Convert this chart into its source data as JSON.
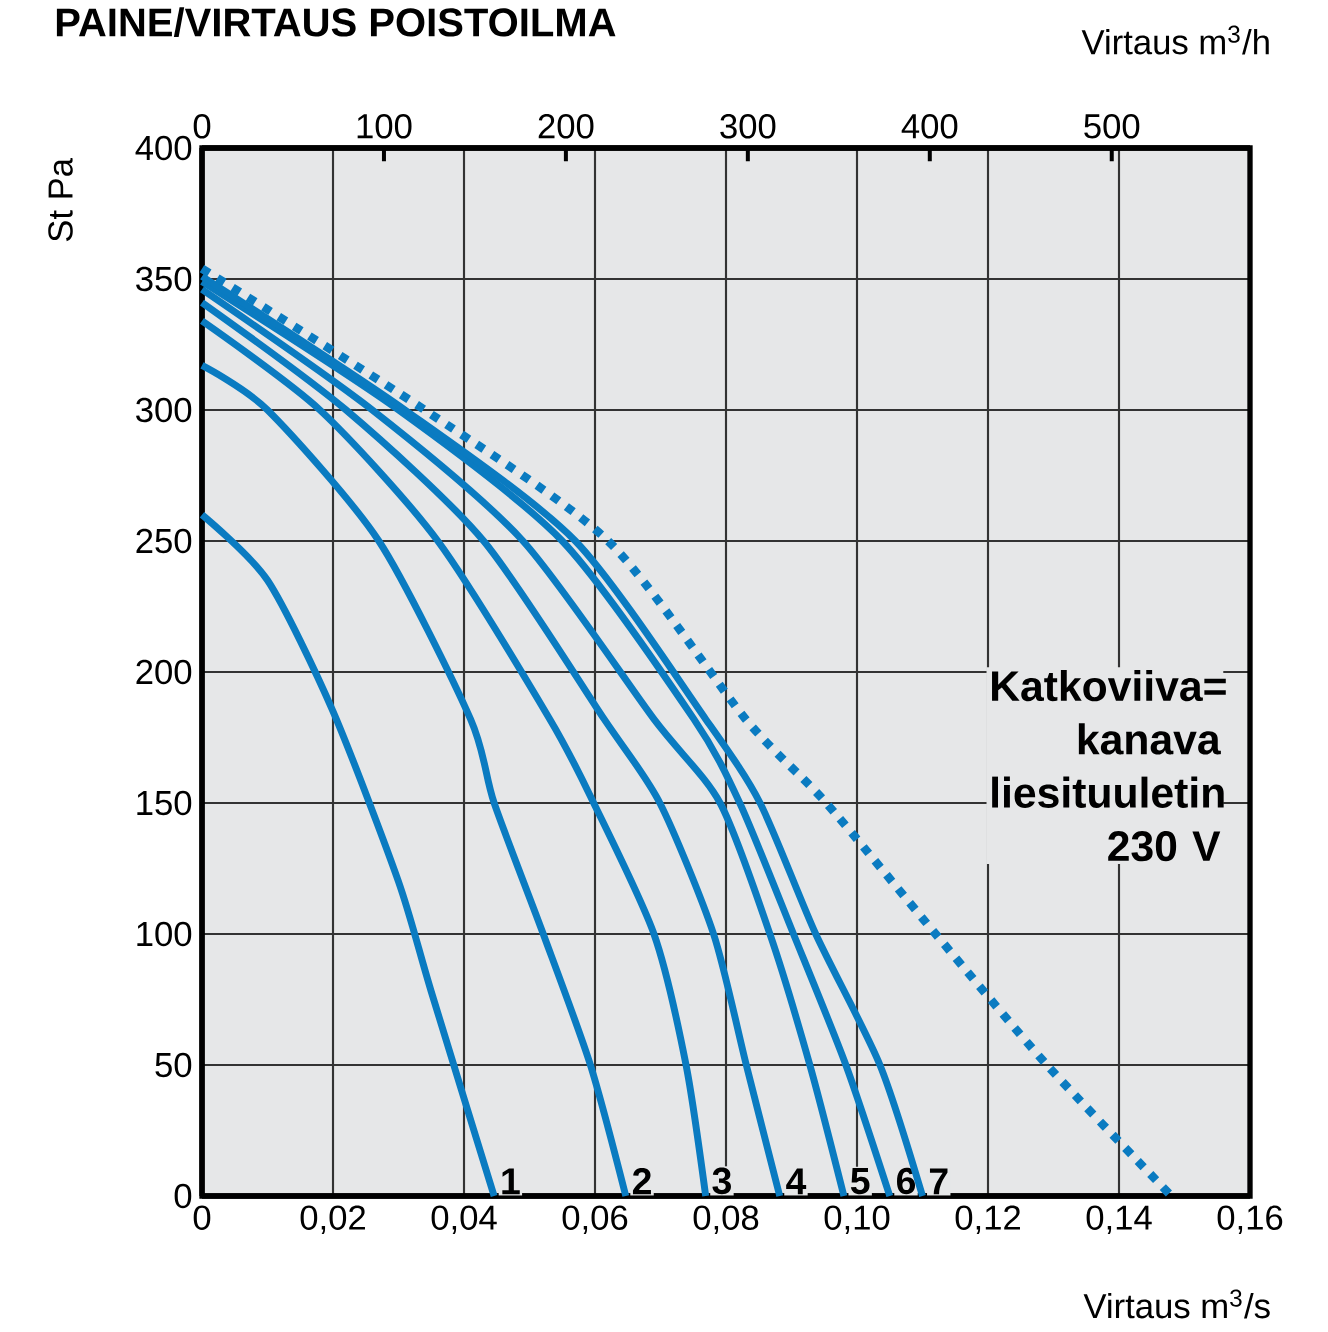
{
  "chart_data": {
    "type": "line",
    "title": "PAINE/VIRTAUS POISTOILMA",
    "xlabel": "Virtaus m$^{3}$/s",
    "x2label": "Virtaus m$^{3}$/h",
    "ylabel": "St  Pa",
    "xlim": [
      0,
      0.16
    ],
    "xticks": [
      0,
      {
        "value": 0.02,
        "label": "0,02"
      },
      {
        "value": 0.04,
        "label": "0,04"
      },
      {
        "value": 0.06,
        "label": "0,06"
      },
      {
        "value": 0.08,
        "label": "0,08"
      },
      {
        "value": 0.1,
        "label": "0,10"
      },
      {
        "value": 0.12,
        "label": "0,12"
      },
      {
        "value": 0.14,
        "label": "0,14"
      },
      {
        "value": 0.16,
        "label": "0,16"
      }
    ],
    "x2lim": [
      0,
      576
    ],
    "x2ticks": [
      0,
      100,
      200,
      300,
      400,
      500
    ],
    "ylim": [
      0,
      400
    ],
    "yticks": [
      0,
      50,
      100,
      150,
      200,
      250,
      300,
      350,
      400
    ],
    "grid": true,
    "marker": "none",
    "series": [
      {
        "name": "1",
        "color": "#0a7bc1",
        "line_style": "solid",
        "x": [
          0,
          0.01,
          0.02,
          0.03,
          0.035,
          0.0446
        ],
        "values": [
          260,
          235,
          185,
          120,
          78,
          0
        ]
      },
      {
        "name": "2",
        "color": "#0a7bc1",
        "line_style": "solid",
        "x": [
          0,
          0.01,
          0.027,
          0.041,
          0.0446,
          0.0521,
          0.0593,
          0.0647
        ],
        "values": [
          317,
          300,
          250,
          182,
          150,
          100,
          50,
          0
        ]
      },
      {
        "name": "3",
        "color": "#0a7bc1",
        "line_style": "solid",
        "x": [
          0,
          0.018,
          0.036,
          0.0531,
          0.0598,
          0.069,
          0.0739,
          0.0769
        ],
        "values": [
          334,
          300,
          250,
          182,
          150,
          100,
          50,
          0
        ]
      },
      {
        "name": "4",
        "color": "#0a7bc1",
        "line_style": "solid",
        "x": [
          0,
          0.022,
          0.043,
          0.0614,
          0.0699,
          0.0781,
          0.0831,
          0.0882
        ],
        "values": [
          341,
          300,
          250,
          182,
          150,
          100,
          50,
          0
        ]
      },
      {
        "name": "5",
        "color": "#0a7bc1",
        "line_style": "solid",
        "x": [
          0,
          0.026,
          0.049,
          0.069,
          0.0791,
          0.0867,
          0.0928,
          0.098
        ],
        "values": [
          346,
          300,
          250,
          182,
          150,
          100,
          50,
          0
        ]
      },
      {
        "name": "6",
        "color": "#0a7bc1",
        "line_style": "solid",
        "x": [
          0,
          0.03,
          0.055,
          0.0751,
          0.0821,
          0.0903,
          0.0983,
          0.105
        ],
        "values": [
          349,
          300,
          250,
          182,
          150,
          100,
          50,
          0
        ]
      },
      {
        "name": "7",
        "color": "#0a7bc1",
        "line_style": "solid",
        "x": [
          0,
          0.031,
          0.057,
          0.0769,
          0.0852,
          0.0937,
          0.1035,
          0.11
        ],
        "values": [
          351,
          300,
          250,
          182,
          150,
          100,
          50,
          0
        ]
      },
      {
        "color": "#0a7bc1",
        "line_style": "dotted",
        "x": [
          0,
          0.034,
          0.062,
          0.083,
          0.0953,
          0.112,
          0.129,
          0.148
        ],
        "values": [
          354,
          300,
          250,
          182,
          150,
          100,
          50,
          0
        ]
      }
    ],
    "annotations": [
      "Katkoviiva= kanava liesituuletin 230 V"
    ]
  }
}
